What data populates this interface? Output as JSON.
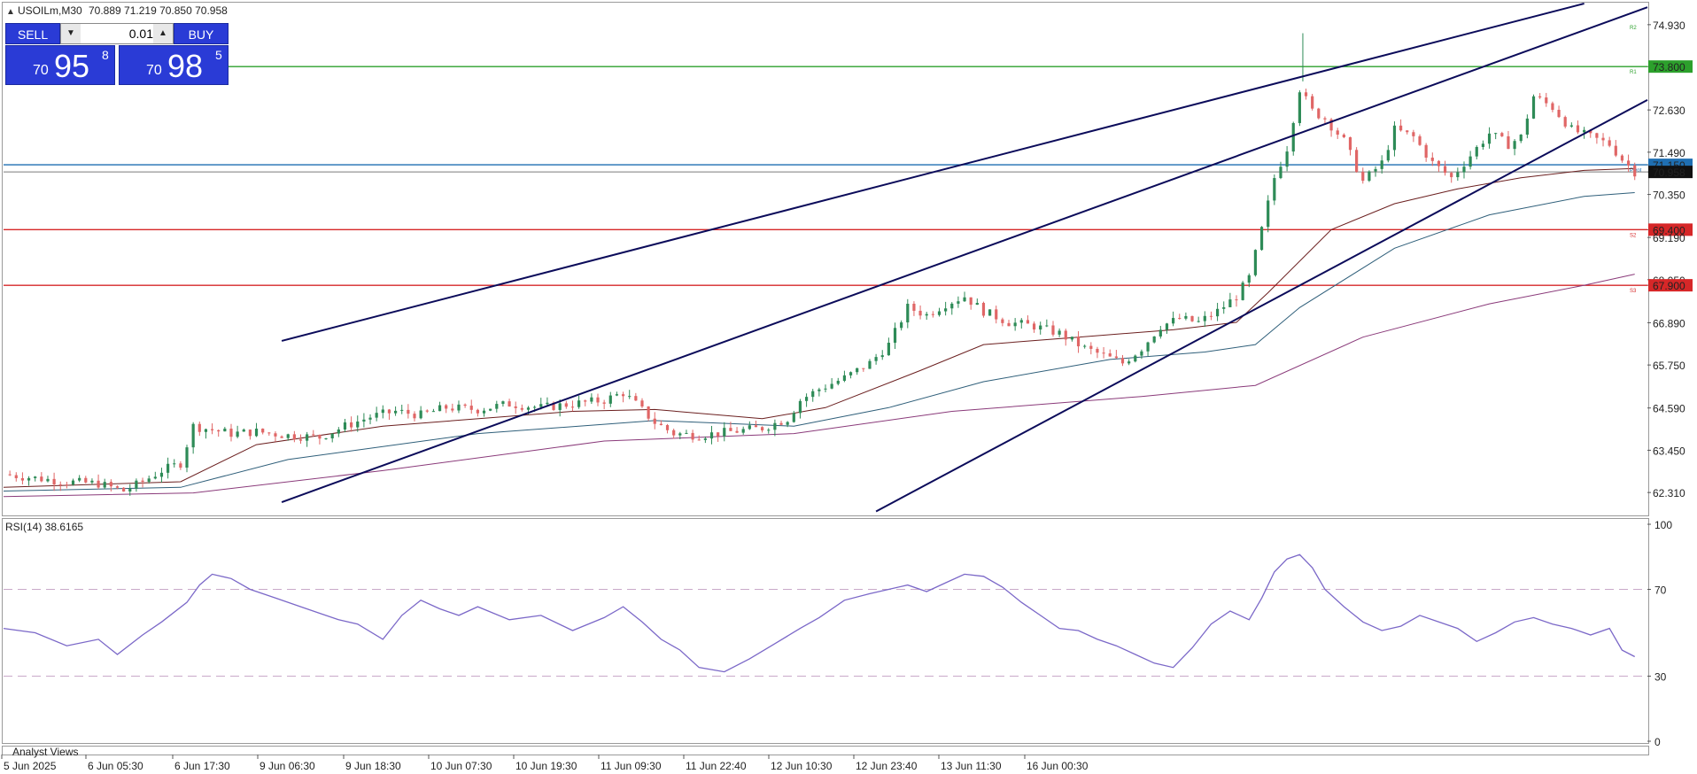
{
  "header": {
    "symbol_info": "USOILm,M30",
    "ohlc": "70.889 71.219 70.850 70.958"
  },
  "trade_panel": {
    "sell_label": "SELL",
    "buy_label": "BUY",
    "lot_value": "0.01",
    "sell_price": {
      "prefix": "70",
      "big": "95",
      "sup": "8"
    },
    "buy_price": {
      "prefix": "70",
      "big": "98",
      "sup": "5"
    },
    "sell_color": "#2a3bd6",
    "buy_color": "#2a3bd6"
  },
  "rsi_label": "RSI(14) 38.6165",
  "bottom_panel_label": "Analyst Views",
  "colors": {
    "up": "#2e8b57",
    "down": "#e06666",
    "channel": "#0b0b5a",
    "support": "#d62728",
    "resistance": "#2ca02c",
    "pivot": "#1f6fb2",
    "rsi": "#7b68c8"
  },
  "chart_data": {
    "type": "candlestick",
    "price_ylim": [
      61.74,
      75.5
    ],
    "price_ticks": [
      "74.930",
      "73.800",
      "72.630",
      "71.490",
      "71.150",
      "70.958",
      "70.350",
      "69.400",
      "69.190",
      "68.050",
      "67.900",
      "66.890",
      "65.750",
      "64.590",
      "63.450",
      "62.310"
    ],
    "x_ticks": [
      "5 Jun 2025",
      "6 Jun 05:30",
      "6 Jun 17:30",
      "9 Jun 06:30",
      "9 Jun 18:30",
      "10 Jun 07:30",
      "10 Jun 19:30",
      "11 Jun 09:30",
      "11 Jun 22:40",
      "12 Jun 10:30",
      "12 Jun 23:40",
      "13 Jun 11:30",
      "16 Jun 00:30"
    ],
    "levels": [
      {
        "name": "R2",
        "value": 75.0,
        "role": "resistance",
        "price_label": ""
      },
      {
        "name": "R1",
        "value": 73.8,
        "role": "resistance",
        "price_label": "73.800"
      },
      {
        "name": "Pivot",
        "value": 71.15,
        "role": "pivot",
        "price_label": "71.150"
      },
      {
        "name": "",
        "value": 70.958,
        "role": "current",
        "price_label": "70.958"
      },
      {
        "name": "S2",
        "value": 69.4,
        "role": "support",
        "price_label": "69.400"
      },
      {
        "name": "S3",
        "value": 67.9,
        "role": "support",
        "price_label": "67.900"
      }
    ],
    "close_path": [
      [
        0,
        62.8
      ],
      [
        10,
        62.7
      ],
      [
        20,
        62.6
      ],
      [
        30,
        62.55
      ],
      [
        38,
        62.35
      ],
      [
        44,
        62.6
      ],
      [
        50,
        62.9
      ],
      [
        56,
        63.1
      ],
      [
        60,
        64.1
      ],
      [
        66,
        64.0
      ],
      [
        72,
        63.9
      ],
      [
        80,
        63.95
      ],
      [
        90,
        63.85
      ],
      [
        100,
        63.8
      ],
      [
        108,
        64.1
      ],
      [
        116,
        64.35
      ],
      [
        124,
        64.5
      ],
      [
        132,
        64.4
      ],
      [
        140,
        64.6
      ],
      [
        150,
        64.55
      ],
      [
        160,
        64.7
      ],
      [
        170,
        64.6
      ],
      [
        180,
        64.7
      ],
      [
        190,
        64.8
      ],
      [
        196,
        65.0
      ],
      [
        200,
        64.7
      ],
      [
        206,
        64.2
      ],
      [
        212,
        63.9
      ],
      [
        220,
        63.85
      ],
      [
        230,
        63.95
      ],
      [
        240,
        64.05
      ],
      [
        248,
        64.3
      ],
      [
        252,
        64.8
      ],
      [
        258,
        65.1
      ],
      [
        266,
        65.4
      ],
      [
        274,
        65.8
      ],
      [
        280,
        66.3
      ],
      [
        286,
        67.3
      ],
      [
        292,
        67.1
      ],
      [
        298,
        67.4
      ],
      [
        304,
        67.6
      ],
      [
        310,
        67.2
      ],
      [
        318,
        66.9
      ],
      [
        326,
        66.8
      ],
      [
        334,
        66.6
      ],
      [
        342,
        66.2
      ],
      [
        348,
        66.0
      ],
      [
        354,
        65.8
      ],
      [
        360,
        66.2
      ],
      [
        366,
        66.8
      ],
      [
        372,
        67.0
      ],
      [
        378,
        66.9
      ],
      [
        384,
        67.2
      ],
      [
        390,
        67.6
      ],
      [
        394,
        68.1
      ],
      [
        398,
        69.4
      ],
      [
        402,
        70.8
      ],
      [
        406,
        71.6
      ],
      [
        410,
        73.2
      ],
      [
        414,
        72.6
      ],
      [
        418,
        72.4
      ],
      [
        424,
        71.8
      ],
      [
        430,
        70.7
      ],
      [
        436,
        71.2
      ],
      [
        440,
        72.1
      ],
      [
        446,
        71.9
      ],
      [
        452,
        71.2
      ],
      [
        458,
        70.8
      ],
      [
        464,
        71.4
      ],
      [
        470,
        72.0
      ],
      [
        476,
        71.7
      ],
      [
        480,
        71.9
      ],
      [
        484,
        73.0
      ],
      [
        490,
        72.7
      ],
      [
        496,
        72.1
      ],
      [
        502,
        71.9
      ],
      [
        508,
        71.7
      ],
      [
        512,
        71.3
      ],
      [
        516,
        70.96
      ]
    ],
    "ma_fast": [
      [
        0,
        62.45
      ],
      [
        56,
        62.6
      ],
      [
        80,
        63.6
      ],
      [
        120,
        64.1
      ],
      [
        180,
        64.5
      ],
      [
        206,
        64.55
      ],
      [
        240,
        64.3
      ],
      [
        260,
        64.6
      ],
      [
        290,
        65.6
      ],
      [
        310,
        66.3
      ],
      [
        340,
        66.5
      ],
      [
        370,
        66.7
      ],
      [
        390,
        66.9
      ],
      [
        400,
        67.7
      ],
      [
        420,
        69.4
      ],
      [
        440,
        70.1
      ],
      [
        460,
        70.5
      ],
      [
        480,
        70.8
      ],
      [
        500,
        71.0
      ],
      [
        516,
        71.05
      ]
    ],
    "ma_mid": [
      [
        0,
        62.35
      ],
      [
        56,
        62.45
      ],
      [
        90,
        63.2
      ],
      [
        150,
        63.9
      ],
      [
        206,
        64.25
      ],
      [
        250,
        64.1
      ],
      [
        280,
        64.6
      ],
      [
        310,
        65.3
      ],
      [
        350,
        65.9
      ],
      [
        380,
        66.1
      ],
      [
        396,
        66.3
      ],
      [
        410,
        67.3
      ],
      [
        440,
        68.9
      ],
      [
        470,
        69.8
      ],
      [
        500,
        70.3
      ],
      [
        516,
        70.4
      ]
    ],
    "ma_slow": [
      [
        0,
        62.2
      ],
      [
        60,
        62.3
      ],
      [
        120,
        62.9
      ],
      [
        190,
        63.7
      ],
      [
        250,
        63.9
      ],
      [
        300,
        64.5
      ],
      [
        360,
        64.9
      ],
      [
        396,
        65.2
      ],
      [
        430,
        66.5
      ],
      [
        470,
        67.4
      ],
      [
        500,
        67.9
      ],
      [
        516,
        68.2
      ]
    ],
    "channel": [
      {
        "x1": 88,
        "y1": 66.4,
        "x2": 500,
        "y2": 75.5
      },
      {
        "x1": 88,
        "y1": 62.05,
        "x2": 696,
        "y2": 75.4
      },
      {
        "x1": 276,
        "y1": 61.8,
        "x2": 786,
        "y2": 72.9
      }
    ],
    "rsi": {
      "ylim": [
        0,
        100
      ],
      "ticks": [
        "100",
        "70",
        "30",
        "0"
      ],
      "levels": [
        70,
        30
      ],
      "values": [
        [
          0,
          52
        ],
        [
          10,
          50
        ],
        [
          20,
          44
        ],
        [
          30,
          47
        ],
        [
          36,
          40
        ],
        [
          44,
          49
        ],
        [
          50,
          55
        ],
        [
          58,
          64
        ],
        [
          62,
          72
        ],
        [
          66,
          77
        ],
        [
          72,
          75
        ],
        [
          78,
          70
        ],
        [
          86,
          66
        ],
        [
          94,
          62
        ],
        [
          100,
          59
        ],
        [
          106,
          56
        ],
        [
          112,
          54
        ],
        [
          120,
          47
        ],
        [
          126,
          58
        ],
        [
          132,
          65
        ],
        [
          138,
          61
        ],
        [
          144,
          58
        ],
        [
          150,
          62
        ],
        [
          160,
          56
        ],
        [
          170,
          58
        ],
        [
          180,
          51
        ],
        [
          190,
          57
        ],
        [
          196,
          62
        ],
        [
          202,
          55
        ],
        [
          208,
          47
        ],
        [
          214,
          42
        ],
        [
          220,
          34
        ],
        [
          228,
          32
        ],
        [
          236,
          38
        ],
        [
          244,
          45
        ],
        [
          252,
          52
        ],
        [
          258,
          57
        ],
        [
          266,
          65
        ],
        [
          274,
          68
        ],
        [
          280,
          70
        ],
        [
          286,
          72
        ],
        [
          292,
          69
        ],
        [
          298,
          73
        ],
        [
          304,
          77
        ],
        [
          310,
          76
        ],
        [
          316,
          71
        ],
        [
          322,
          64
        ],
        [
          328,
          58
        ],
        [
          334,
          52
        ],
        [
          340,
          51
        ],
        [
          346,
          47
        ],
        [
          352,
          44
        ],
        [
          358,
          40
        ],
        [
          364,
          36
        ],
        [
          370,
          34
        ],
        [
          376,
          43
        ],
        [
          382,
          54
        ],
        [
          388,
          60
        ],
        [
          394,
          56
        ],
        [
          398,
          66
        ],
        [
          402,
          78
        ],
        [
          406,
          84
        ],
        [
          410,
          86
        ],
        [
          414,
          80
        ],
        [
          418,
          70
        ],
        [
          424,
          62
        ],
        [
          430,
          55
        ],
        [
          436,
          51
        ],
        [
          442,
          53
        ],
        [
          448,
          58
        ],
        [
          454,
          55
        ],
        [
          460,
          52
        ],
        [
          466,
          46
        ],
        [
          472,
          50
        ],
        [
          478,
          55
        ],
        [
          484,
          57
        ],
        [
          490,
          54
        ],
        [
          496,
          52
        ],
        [
          502,
          49
        ],
        [
          508,
          52
        ],
        [
          512,
          42
        ],
        [
          516,
          39
        ]
      ]
    }
  }
}
